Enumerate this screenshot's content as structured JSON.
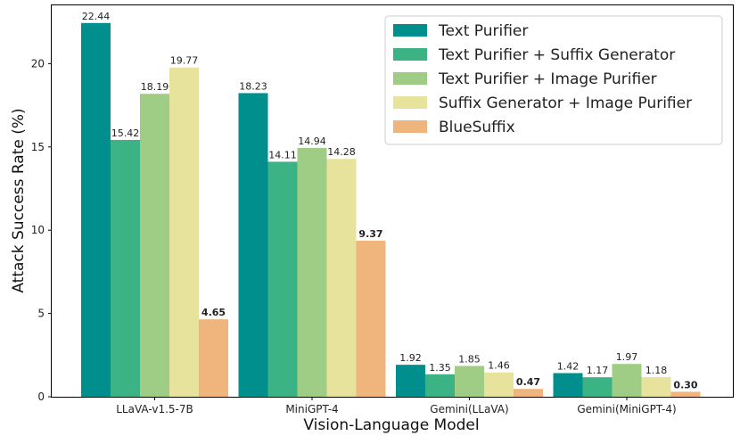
{
  "chart_data": {
    "type": "bar",
    "title": "",
    "xlabel": "Vision-Language Model",
    "ylabel": "Attack Success Rate (%)",
    "ylim": [
      0,
      23.5
    ],
    "yticks": [
      "0",
      "5",
      "10",
      "15",
      "20"
    ],
    "grid": false,
    "legend_position": "top-right",
    "categories": [
      "LLaVA-v1.5-7B",
      "MiniGPT-4",
      "Gemini(LLaVA)",
      "Gemini(MiniGPT-4)"
    ],
    "series": [
      {
        "name": "Text Purifier",
        "color": "#008f8c",
        "values": [
          22.44,
          18.23,
          1.92,
          1.42
        ],
        "labels": [
          "22.44",
          "18.23",
          "1.92",
          "1.42"
        ]
      },
      {
        "name": "Text Purifier + Suffix Generator",
        "color": "#3bb384",
        "values": [
          15.42,
          14.11,
          1.35,
          1.17
        ],
        "labels": [
          "15.42",
          "14.11",
          "1.35",
          "1.17"
        ]
      },
      {
        "name": "Text Purifier + Image Purifier",
        "color": "#9fcd85",
        "values": [
          18.19,
          14.94,
          1.85,
          1.97
        ],
        "labels": [
          "18.19",
          "14.94",
          "1.85",
          "1.97"
        ]
      },
      {
        "name": "Suffix Generator + Image Purifier",
        "color": "#e8e39c",
        "values": [
          19.77,
          14.28,
          1.46,
          1.18
        ],
        "labels": [
          "19.77",
          "14.28",
          "1.46",
          "1.18"
        ]
      },
      {
        "name": "BlueSuffix",
        "color": "#efb57d",
        "values": [
          4.65,
          9.37,
          0.47,
          0.3
        ],
        "labels": [
          "4.65",
          "9.37",
          "0.47",
          "0.30"
        ],
        "bold_labels": true
      }
    ]
  }
}
